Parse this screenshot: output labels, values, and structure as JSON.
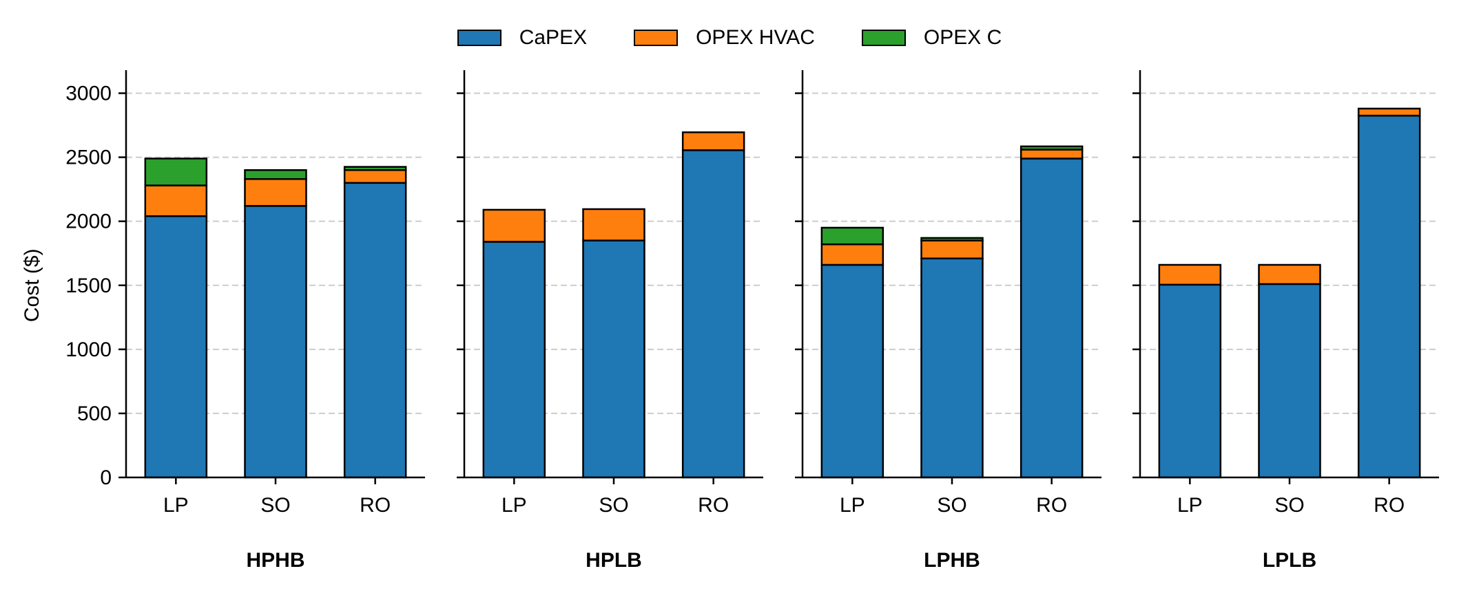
{
  "chart_data": {
    "type": "bar",
    "stacked": true,
    "ylabel": "Cost ($)",
    "ylim": [
      0,
      3180
    ],
    "yticks": [
      0,
      500,
      1000,
      1500,
      2000,
      2500,
      3000
    ],
    "grid": "y-dashed",
    "legend_position": "top-center",
    "legend": [
      {
        "name": "CaPEX",
        "color": "#1f77b4"
      },
      {
        "name": "OPEX HVAC",
        "color": "#ff7f0e"
      },
      {
        "name": "OPEX C",
        "color": "#2ca02c"
      }
    ],
    "panels": [
      {
        "title": "HPHB",
        "categories": [
          "LP",
          "SO",
          "RO"
        ],
        "series": [
          {
            "name": "CaPEX",
            "values": [
              2040,
              2120,
              2300
            ]
          },
          {
            "name": "OPEX HVAC",
            "values": [
              240,
              210,
              100
            ]
          },
          {
            "name": "OPEX C",
            "values": [
              210,
              70,
              25
            ]
          }
        ]
      },
      {
        "title": "HPLB",
        "categories": [
          "LP",
          "SO",
          "RO"
        ],
        "series": [
          {
            "name": "CaPEX",
            "values": [
              1840,
              1850,
              2555
            ]
          },
          {
            "name": "OPEX HVAC",
            "values": [
              250,
              245,
              140
            ]
          },
          {
            "name": "OPEX C",
            "values": [
              0,
              0,
              0
            ]
          }
        ]
      },
      {
        "title": "LPHB",
        "categories": [
          "LP",
          "SO",
          "RO"
        ],
        "series": [
          {
            "name": "CaPEX",
            "values": [
              1660,
              1710,
              2490
            ]
          },
          {
            "name": "OPEX HVAC",
            "values": [
              160,
              140,
              70
            ]
          },
          {
            "name": "OPEX C",
            "values": [
              130,
              20,
              25
            ]
          }
        ]
      },
      {
        "title": "LPLB",
        "categories": [
          "LP",
          "SO",
          "RO"
        ],
        "series": [
          {
            "name": "CaPEX",
            "values": [
              1505,
              1510,
              2825
            ]
          },
          {
            "name": "OPEX HVAC",
            "values": [
              155,
              150,
              55
            ]
          },
          {
            "name": "OPEX C",
            "values": [
              0,
              0,
              0
            ]
          }
        ]
      }
    ]
  }
}
